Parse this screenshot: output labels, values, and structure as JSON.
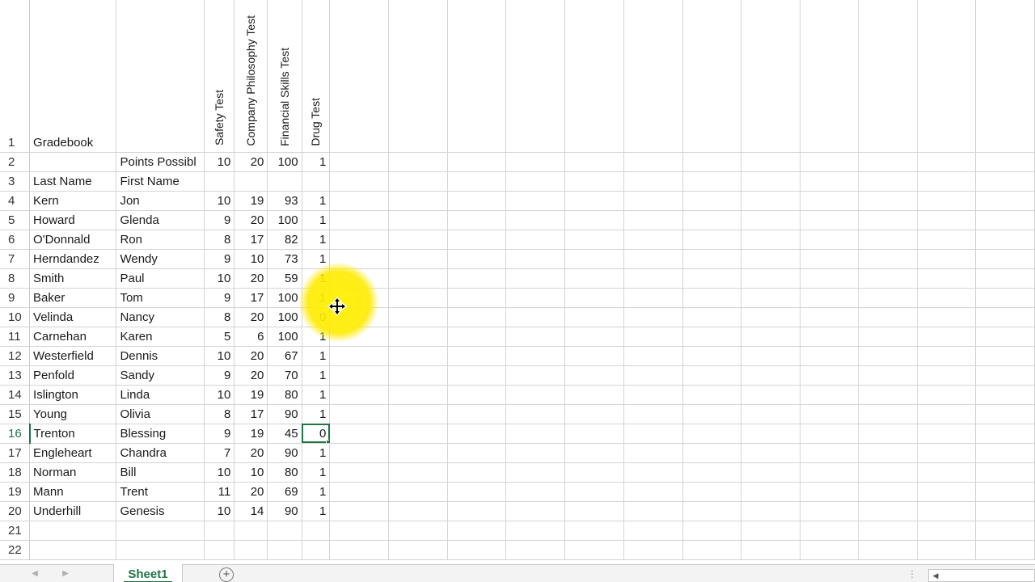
{
  "sheet": {
    "row_numbers": [
      "1",
      "2",
      "3",
      "4",
      "5",
      "6",
      "7",
      "8",
      "9",
      "10",
      "11",
      "12",
      "13",
      "14",
      "15",
      "16",
      "17",
      "18",
      "19",
      "20",
      "21",
      "22"
    ],
    "title": "Gradebook",
    "points_label": "Points Possibl",
    "header_last": "Last Name",
    "header_first": "First Name",
    "test_headers": [
      "Safety Test",
      "Company Philosophy Test",
      "Financial Skills Test",
      "Drug Test"
    ],
    "points": [
      "10",
      "20",
      "100",
      "1"
    ],
    "students": [
      {
        "last": "Kern",
        "first": "Jon",
        "scores": [
          "10",
          "19",
          "93",
          "1"
        ]
      },
      {
        "last": "Howard",
        "first": "Glenda",
        "scores": [
          "9",
          "20",
          "100",
          "1"
        ]
      },
      {
        "last": "O'Donnald",
        "first": "Ron",
        "scores": [
          "8",
          "17",
          "82",
          "1"
        ]
      },
      {
        "last": "Herndandez",
        "first": "Wendy",
        "scores": [
          "9",
          "10",
          "73",
          "1"
        ]
      },
      {
        "last": "Smith",
        "first": "Paul",
        "scores": [
          "10",
          "20",
          "59",
          "1"
        ]
      },
      {
        "last": "Baker",
        "first": "Tom",
        "scores": [
          "9",
          "17",
          "100",
          "1"
        ]
      },
      {
        "last": "Velinda",
        "first": "Nancy",
        "scores": [
          "8",
          "20",
          "100",
          "0"
        ]
      },
      {
        "last": "Carnehan",
        "first": "Karen",
        "scores": [
          "5",
          "6",
          "100",
          "1"
        ]
      },
      {
        "last": "Westerfield",
        "first": "Dennis",
        "scores": [
          "10",
          "20",
          "67",
          "1"
        ]
      },
      {
        "last": "Penfold",
        "first": "Sandy",
        "scores": [
          "9",
          "20",
          "70",
          "1"
        ]
      },
      {
        "last": "Islington",
        "first": "Linda",
        "scores": [
          "10",
          "19",
          "80",
          "1"
        ]
      },
      {
        "last": "Young",
        "first": "Olivia",
        "scores": [
          "8",
          "17",
          "90",
          "1"
        ]
      },
      {
        "last": "Trenton",
        "first": "Blessing",
        "scores": [
          "9",
          "19",
          "45",
          "0"
        ]
      },
      {
        "last": "Engleheart",
        "first": "Chandra",
        "scores": [
          "7",
          "20",
          "90",
          "1"
        ]
      },
      {
        "last": "Norman",
        "first": "Bill",
        "scores": [
          "10",
          "10",
          "80",
          "1"
        ]
      },
      {
        "last": "Mann",
        "first": "Trent",
        "scores": [
          "11",
          "20",
          "69",
          "1"
        ]
      },
      {
        "last": "Underhill",
        "first": "Genesis",
        "scores": [
          "10",
          "14",
          "90",
          "1"
        ]
      }
    ],
    "active_row": "16",
    "selected_cell": {
      "student_index": 12,
      "column_index": 3
    }
  },
  "tabs": {
    "sheet_name": "Sheet1",
    "add_sheet": "+"
  },
  "icons": {
    "cursor": "move-cursor-icon",
    "add_sheet": "plus-circle-icon",
    "scroll_left": "scroll-left-icon"
  },
  "colors": {
    "accent": "#217346",
    "highlight": "#ffeb00",
    "gridline": "#d4d4d4"
  }
}
